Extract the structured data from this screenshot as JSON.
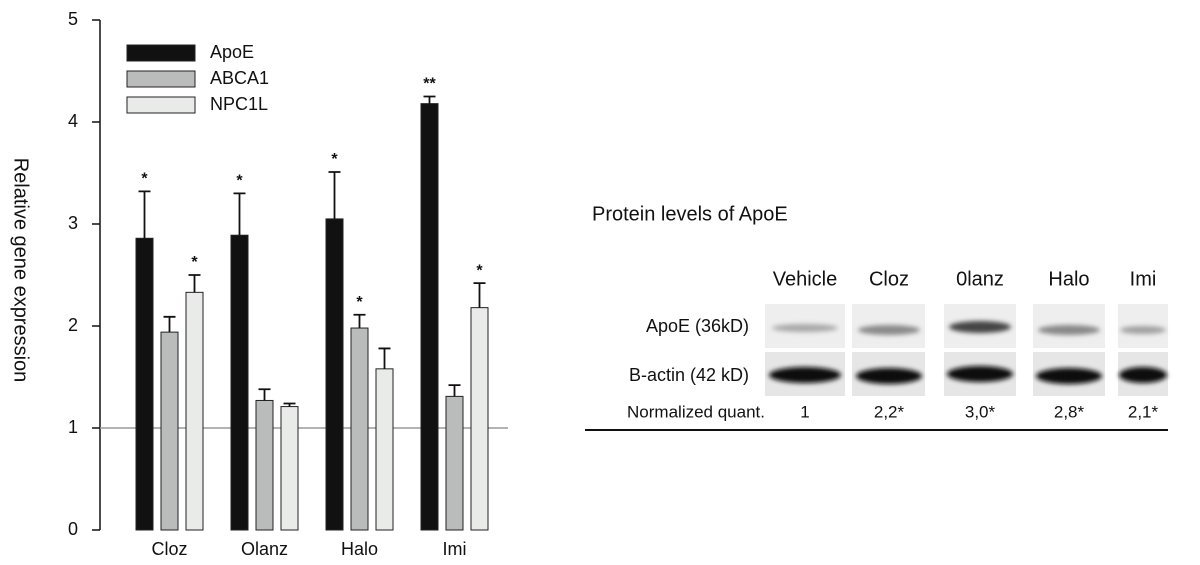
{
  "chart_data": {
    "type": "bar",
    "y_label": "Relative gene expression",
    "categories": [
      "Cloz",
      "Olanz",
      "Halo",
      "Imi"
    ],
    "series": [
      {
        "name": "ApoE",
        "color": "#111111",
        "values": [
          2.86,
          2.89,
          3.05,
          4.18
        ],
        "errors": [
          0.46,
          0.41,
          0.46,
          0.07
        ],
        "significance": [
          "*",
          "*",
          "*",
          "**"
        ]
      },
      {
        "name": "ABCA1",
        "color": "#b9bcba",
        "values": [
          1.94,
          1.27,
          1.98,
          1.31
        ],
        "errors": [
          0.15,
          0.11,
          0.13,
          0.11
        ],
        "significance": [
          null,
          null,
          "*",
          null
        ]
      },
      {
        "name": "NPC1L",
        "color": "#e9ebe9",
        "values": [
          2.33,
          1.21,
          1.58,
          2.18
        ],
        "errors": [
          0.17,
          0.03,
          0.2,
          0.24
        ],
        "significance": [
          "*",
          null,
          null,
          "*"
        ]
      }
    ],
    "ylim": [
      0,
      5
    ],
    "yticks": [
      0,
      1,
      2,
      3,
      4,
      5
    ],
    "reference_line": 1
  },
  "blot": {
    "title": "Protein levels of ApoE",
    "lanes": [
      "Vehicle",
      "Cloz",
      "0lanz",
      "Halo",
      "Imi"
    ],
    "rows": [
      "ApoE (36kD)",
      "B-actin (42 kD)"
    ],
    "quant_label": "Normalized quant.",
    "quant": [
      "1",
      "2,2*",
      "3,0*",
      "2,8*",
      "2,1*"
    ]
  }
}
